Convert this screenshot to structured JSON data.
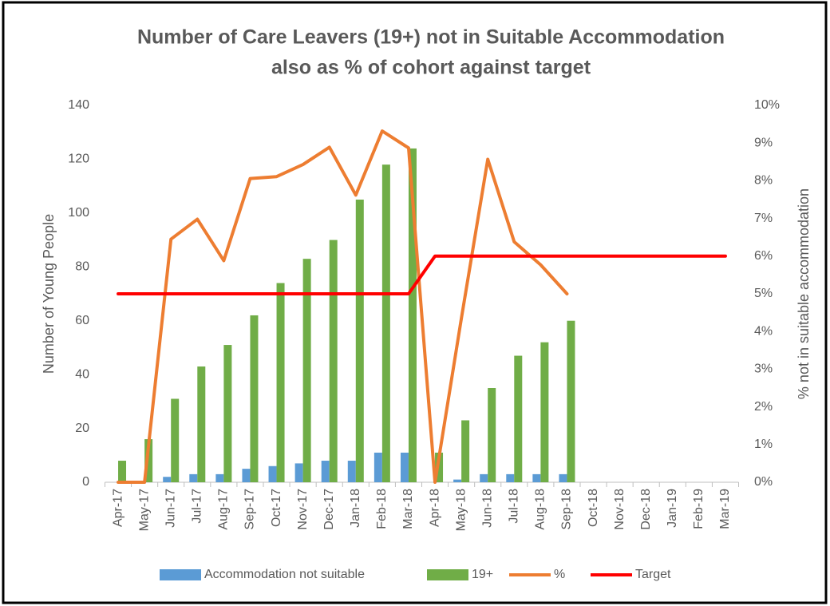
{
  "chart_data": {
    "type": "bar_line",
    "title": [
      "Number of Care Leavers (19+) not in Suitable Accommodation",
      "also as % of cohort against target"
    ],
    "y_label": "Number of Young People",
    "y2_label": "% not in suitable accommodation",
    "categories": [
      "Apr-17",
      "May-17",
      "Jun-17",
      "Jul-17",
      "Aug-17",
      "Sep-17",
      "Oct-17",
      "Nov-17",
      "Dec-17",
      "Jan-18",
      "Feb-18",
      "Mar-18",
      "Apr-18",
      "May-18",
      "Jun-18",
      "Jul-18",
      "Aug-18",
      "Sep-18",
      "Oct-18",
      "Nov-18",
      "Dec-18",
      "Jan-19",
      "Feb-19",
      "Mar-19"
    ],
    "ylim": [
      0,
      140
    ],
    "yticks": [
      0,
      20,
      40,
      60,
      80,
      100,
      120,
      140
    ],
    "y2lim": [
      0,
      10
    ],
    "y2ticks": [
      {
        "value": 0,
        "label": "0%"
      },
      {
        "value": 1,
        "label": "1%"
      },
      {
        "value": 2,
        "label": "2%"
      },
      {
        "value": 3,
        "label": "3%"
      },
      {
        "value": 4,
        "label": "4%"
      },
      {
        "value": 5,
        "label": "5%"
      },
      {
        "value": 6,
        "label": "6%"
      },
      {
        "value": 7,
        "label": "7%"
      },
      {
        "value": 8,
        "label": "8%"
      },
      {
        "value": 9,
        "label": "9%"
      },
      {
        "value": 10,
        "label": "10%"
      }
    ],
    "legend": "bottom",
    "series": [
      {
        "name": "Accommodation not suitable",
        "type": "bar",
        "color": "#5b9bd5",
        "values": [
          0,
          0,
          2,
          3,
          3,
          5,
          6,
          7,
          8,
          8,
          11,
          11,
          0,
          1,
          3,
          3,
          3,
          3,
          null,
          null,
          null,
          null,
          null,
          null
        ]
      },
      {
        "name": "19+",
        "type": "bar",
        "color": "#70ad47",
        "values": [
          8,
          16,
          31,
          43,
          51,
          62,
          74,
          83,
          90,
          105,
          118,
          124,
          11,
          23,
          35,
          47,
          52,
          60,
          null,
          null,
          null,
          null,
          null,
          null
        ]
      },
      {
        "name": "%",
        "type": "line",
        "axis": "y2",
        "color": "#ed7d31",
        "values": [
          0,
          0,
          6.45,
          6.98,
          5.88,
          8.06,
          8.11,
          8.43,
          8.89,
          7.62,
          9.32,
          8.87,
          0,
          4.35,
          8.57,
          6.38,
          5.77,
          5.0,
          null,
          null,
          null,
          null,
          null,
          null
        ]
      },
      {
        "name": "Target",
        "type": "line",
        "axis": "y2",
        "color": "#ff0000",
        "values": [
          5,
          5,
          5,
          5,
          5,
          5,
          5,
          5,
          5,
          5,
          5,
          5,
          6,
          6,
          6,
          6,
          6,
          6,
          6,
          6,
          6,
          6,
          6,
          6
        ]
      }
    ]
  }
}
